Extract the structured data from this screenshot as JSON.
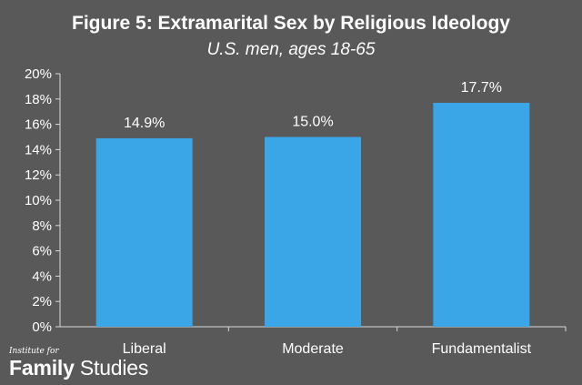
{
  "chart_data": {
    "type": "bar",
    "title": "Figure 5: Extramarital Sex by Religious Ideology",
    "subtitle": "U.S. men, ages 18-65",
    "categories": [
      "Liberal",
      "Moderate",
      "Fundamentalist"
    ],
    "values": [
      14.9,
      15.0,
      17.7
    ],
    "data_labels": [
      "14.9%",
      "15.0%",
      "17.7%"
    ],
    "ylim": [
      0,
      20
    ],
    "yticks": [
      0,
      2,
      4,
      6,
      8,
      10,
      12,
      14,
      16,
      18,
      20
    ],
    "ytick_labels": [
      "0%",
      "2%",
      "4%",
      "6%",
      "8%",
      "10%",
      "12%",
      "14%",
      "16%",
      "18%",
      "20%"
    ],
    "xlabel": "",
    "ylabel": "",
    "grid": false,
    "colors": {
      "bar": "#3aa6e8",
      "background": "#595959",
      "text": "#ffffff",
      "axis": "#d9d9d9"
    }
  },
  "branding": {
    "prefix": "Institute for",
    "name_bold": "Family",
    "name_light": "Studies"
  }
}
